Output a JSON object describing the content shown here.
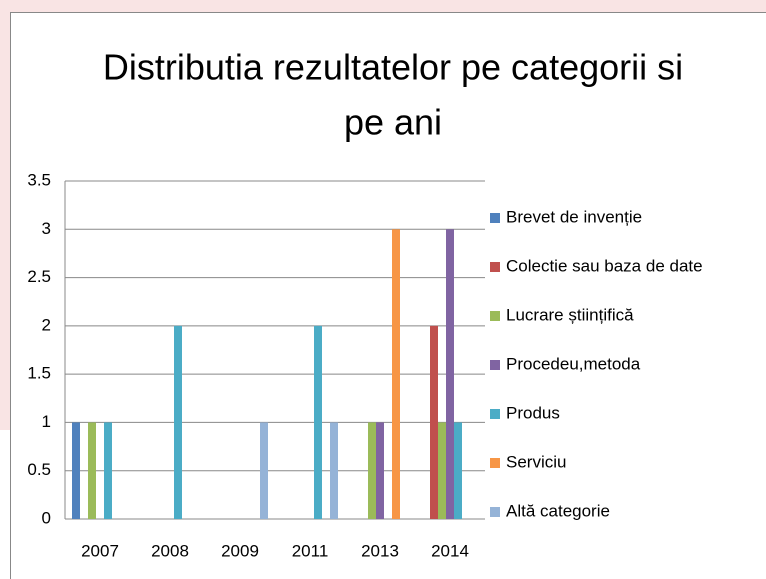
{
  "chart_data": {
    "type": "bar",
    "title": [
      "Distributia rezultatelor pe categorii si",
      "pe ani"
    ],
    "categories": [
      "2007",
      "2008",
      "2009",
      "2011",
      "2013",
      "2014"
    ],
    "series": [
      {
        "name": "Brevet de invenție",
        "color": "#4f81bd",
        "values": [
          1,
          0,
          0,
          0,
          0,
          0
        ]
      },
      {
        "name": "Colectie sau baza de date",
        "color": "#c0504d",
        "values": [
          0,
          0,
          0,
          0,
          0,
          2
        ]
      },
      {
        "name": "Lucrare științifică",
        "color": "#9bbb59",
        "values": [
          1,
          0,
          0,
          0,
          1,
          1
        ]
      },
      {
        "name": "Procedeu,metoda",
        "color": "#8064a2",
        "values": [
          0,
          0,
          0,
          0,
          1,
          3
        ]
      },
      {
        "name": "Produs",
        "color": "#4bacc6",
        "values": [
          1,
          2,
          0,
          2,
          0,
          1
        ]
      },
      {
        "name": "Serviciu",
        "color": "#f79646",
        "values": [
          0,
          0,
          0,
          0,
          3,
          0
        ]
      },
      {
        "name": "Altă categorie",
        "color": "#95b3d7",
        "values": [
          0,
          0,
          1,
          1,
          0,
          0
        ]
      }
    ],
    "ylim": [
      0,
      3.5
    ],
    "yticks": [
      0,
      0.5,
      1,
      1.5,
      2,
      2.5,
      3,
      3.5
    ],
    "grid": true,
    "legend": "right"
  }
}
